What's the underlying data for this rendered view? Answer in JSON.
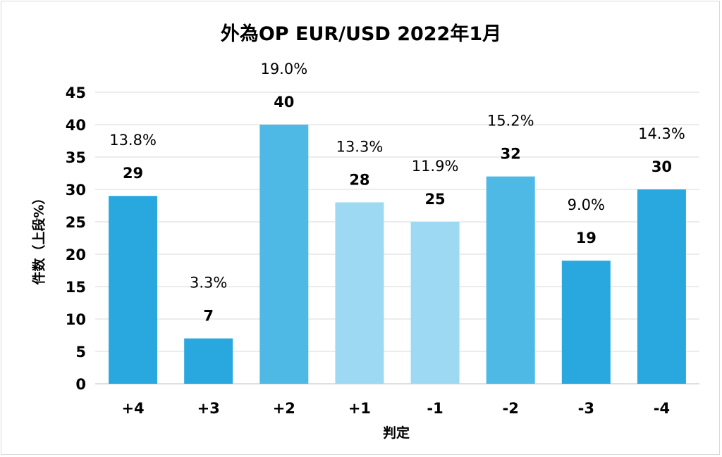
{
  "chart_data": {
    "type": "bar",
    "title": "外為OP EUR/USD 2022年1月",
    "xlabel": "判定",
    "ylabel": "件数（上段%）",
    "ylim": [
      0,
      45
    ],
    "yticks": [
      0,
      5,
      10,
      15,
      20,
      25,
      30,
      35,
      40,
      45
    ],
    "grid": true,
    "categories": [
      "+4",
      "+3",
      "+2",
      "+1",
      "-1",
      "-2",
      "-3",
      "-4"
    ],
    "values": [
      29,
      7,
      40,
      28,
      25,
      32,
      19,
      30
    ],
    "percent_labels": [
      "13.8%",
      "3.3%",
      "19.0%",
      "13.3%",
      "11.9%",
      "15.2%",
      "9.0%",
      "14.3%"
    ],
    "colors": [
      "#29a8e0",
      "#29a8e0",
      "#4fb9e6",
      "#9dd9f3",
      "#9dd9f3",
      "#4fb9e6",
      "#29a8e0",
      "#29a8e0"
    ]
  }
}
